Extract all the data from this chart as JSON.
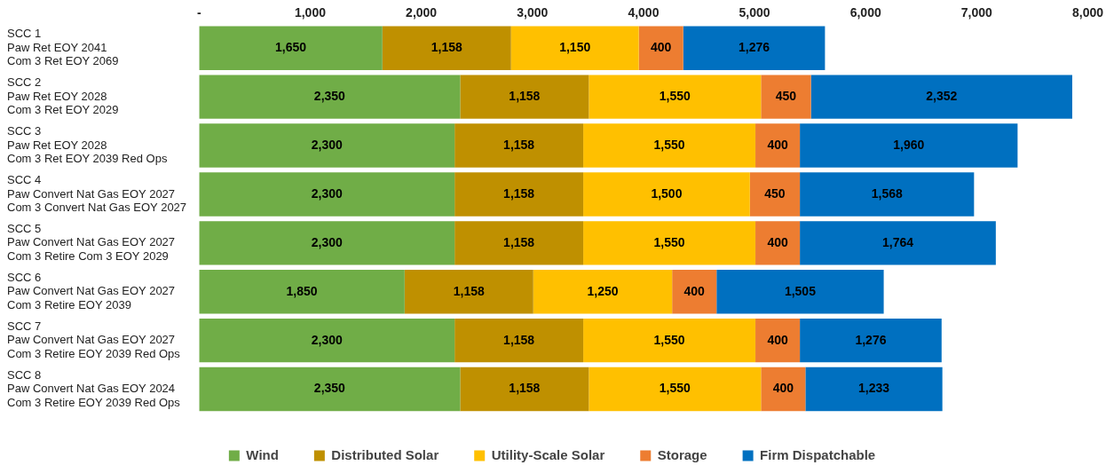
{
  "chart_data": {
    "type": "bar",
    "orientation": "horizontal",
    "stacked": true,
    "legend": "bottom",
    "grid": false,
    "categories": [
      "SCC 1\nPaw Ret EOY 2041\nCom 3 Ret EOY 2069",
      "SCC 2\nPaw Ret EOY 2028\nCom 3 Ret EOY 2029",
      "SCC 3\nPaw Ret EOY 2028\nCom 3 Ret EOY 2039 Red Ops",
      "SCC 4\nPaw Convert Nat Gas EOY 2027\nCom 3 Convert Nat Gas EOY 2027",
      "SCC 5\nPaw Convert Nat Gas EOY 2027\nCom 3 Retire Com 3 EOY 2029",
      "SCC 6\nPaw Convert Nat Gas EOY 2027\nCom 3 Retire EOY 2039",
      "SCC 7\nPaw Convert Nat Gas EOY 2027\nCom 3 Retire EOY 2039 Red Ops",
      "SCC 8\nPaw Convert Nat Gas EOY 2024\nCom 3 Retire EOY 2039 Red Ops"
    ],
    "xlim": [
      0,
      8000
    ],
    "xticks": [
      {
        "value": 0,
        "label": "-"
      },
      {
        "value": 1000,
        "label": "1,000"
      },
      {
        "value": 2000,
        "label": "2,000"
      },
      {
        "value": 3000,
        "label": "3,000"
      },
      {
        "value": 4000,
        "label": "4,000"
      },
      {
        "value": 5000,
        "label": "5,000"
      },
      {
        "value": 6000,
        "label": "6,000"
      },
      {
        "value": 7000,
        "label": "7,000"
      },
      {
        "value": 8000,
        "label": "8,000"
      }
    ],
    "series": [
      {
        "name": "Wind",
        "color": "#70ad47",
        "values": [
          1650,
          2350,
          2300,
          2300,
          2300,
          1850,
          2300,
          2350
        ],
        "value_labels": [
          "1,650",
          "2,350",
          "2,300",
          "2,300",
          "2,300",
          "1,850",
          "2,300",
          "2,350"
        ]
      },
      {
        "name": "Distributed Solar",
        "color": "#bf9000",
        "values": [
          1158,
          1158,
          1158,
          1158,
          1158,
          1158,
          1158,
          1158
        ],
        "value_labels": [
          "1,158",
          "1,158",
          "1,158",
          "1,158",
          "1,158",
          "1,158",
          "1,158",
          "1,158"
        ]
      },
      {
        "name": "Utility-Scale Solar",
        "color": "#ffc000",
        "values": [
          1150,
          1550,
          1550,
          1500,
          1550,
          1250,
          1550,
          1550
        ],
        "value_labels": [
          "1,150",
          "1,550",
          "1,550",
          "1,500",
          "1,550",
          "1,250",
          "1,550",
          "1,550"
        ]
      },
      {
        "name": "Storage",
        "color": "#ed7d31",
        "values": [
          400,
          450,
          400,
          450,
          400,
          400,
          400,
          400
        ],
        "value_labels": [
          "400",
          "450",
          "400",
          "450",
          "400",
          "400",
          "400",
          "400"
        ]
      },
      {
        "name": "Firm Dispatchable",
        "color": "#0070c0",
        "values": [
          1276,
          2352,
          1960,
          1568,
          1764,
          1505,
          1276,
          1233
        ],
        "value_labels": [
          "1,276",
          "2,352",
          "1,960",
          "1,568",
          "1,764",
          "1,505",
          "1,276",
          "1,233"
        ]
      }
    ]
  }
}
